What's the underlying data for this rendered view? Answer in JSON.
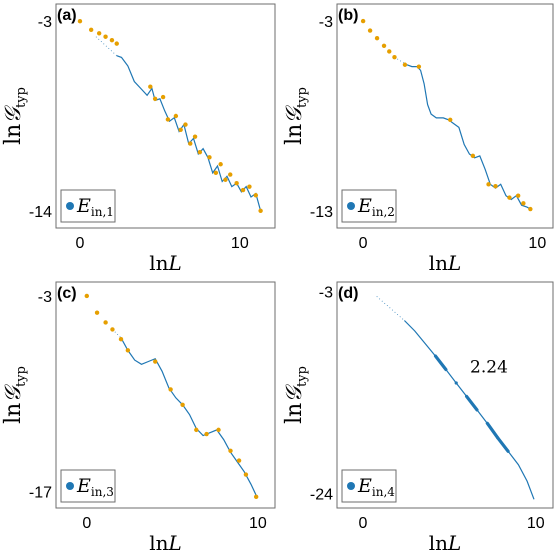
{
  "colors": {
    "curve": "#1f77b4",
    "points": "#e69f00",
    "legend_marker": "#1f77b4",
    "frame": "#6e6e6e"
  },
  "axis_titles": {
    "x": "lnL",
    "y": "ln𝒢typ"
  },
  "chart_data": [
    {
      "type": "line",
      "panel": "(a)",
      "legend": "E_in,1",
      "legend_main": "E",
      "legend_sub": "in,1",
      "xlabel": "lnL",
      "ylabel": "ln𝒢typ",
      "xlim": [
        -1.5,
        12.2
      ],
      "ylim": [
        -15.0,
        -2.0
      ],
      "xticks": [
        0,
        10
      ],
      "yticks": [
        -3,
        -14
      ],
      "ytick_labels": [
        "-3",
        "-14"
      ],
      "dotted_segments": [
        [
          [
            1.0,
            -3.9
          ],
          [
            2.3,
            -5.0
          ]
        ]
      ],
      "line": [
        [
          2.3,
          -5.0
        ],
        [
          2.6,
          -5.1
        ],
        [
          3.0,
          -5.6
        ],
        [
          3.4,
          -6.5
        ],
        [
          3.8,
          -6.9
        ],
        [
          4.2,
          -7.3
        ],
        [
          4.5,
          -6.9
        ],
        [
          4.7,
          -7.6
        ],
        [
          5.0,
          -7.5
        ],
        [
          5.3,
          -8.2
        ],
        [
          5.6,
          -8.8
        ],
        [
          5.9,
          -8.6
        ],
        [
          6.2,
          -9.4
        ],
        [
          6.5,
          -9.0
        ],
        [
          6.8,
          -10.1
        ],
        [
          7.1,
          -9.8
        ],
        [
          7.4,
          -10.7
        ],
        [
          7.7,
          -10.4
        ],
        [
          8.0,
          -10.9
        ],
        [
          8.3,
          -11.8
        ],
        [
          8.6,
          -11.4
        ],
        [
          8.9,
          -12.3
        ],
        [
          9.2,
          -12.0
        ],
        [
          9.5,
          -12.6
        ],
        [
          9.8,
          -12.4
        ],
        [
          10.1,
          -12.9
        ],
        [
          10.4,
          -12.6
        ],
        [
          10.7,
          -13.2
        ],
        [
          11.0,
          -13.0
        ],
        [
          11.3,
          -14.0
        ]
      ],
      "points": [
        [
          0.0,
          -3.0
        ],
        [
          0.7,
          -3.5
        ],
        [
          1.2,
          -3.7
        ],
        [
          1.6,
          -3.9
        ],
        [
          2.0,
          -4.1
        ],
        [
          2.3,
          -4.3
        ],
        [
          4.4,
          -6.8
        ],
        [
          4.7,
          -7.5
        ],
        [
          5.2,
          -7.4
        ],
        [
          5.5,
          -8.7
        ],
        [
          6.0,
          -8.5
        ],
        [
          6.3,
          -9.3
        ],
        [
          6.6,
          -9.0
        ],
        [
          6.9,
          -10.1
        ],
        [
          7.2,
          -9.7
        ],
        [
          7.5,
          -10.6
        ],
        [
          8.1,
          -10.9
        ],
        [
          8.5,
          -11.8
        ],
        [
          8.8,
          -11.3
        ],
        [
          9.1,
          -12.2
        ],
        [
          9.4,
          -11.9
        ],
        [
          9.8,
          -12.4
        ],
        [
          10.2,
          -12.8
        ],
        [
          10.6,
          -12.6
        ],
        [
          11.0,
          -13.1
        ],
        [
          11.3,
          -14.0
        ]
      ]
    },
    {
      "type": "line",
      "panel": "(b)",
      "legend": "E_in,2",
      "legend_main": "E",
      "legend_sub": "in,2",
      "xlabel": "lnL",
      "ylabel": "ln𝒢typ",
      "xlim": [
        -1.5,
        10.9
      ],
      "ylim": [
        -13.9,
        -2.1
      ],
      "xticks": [
        0,
        10
      ],
      "yticks": [
        -3,
        -13
      ],
      "ytick_labels": [
        "-3",
        "-13"
      ],
      "dotted_segments": [
        [
          [
            1.8,
            -4.9
          ],
          [
            2.5,
            -5.3
          ]
        ]
      ],
      "line": [
        [
          2.5,
          -5.3
        ],
        [
          2.8,
          -5.4
        ],
        [
          3.1,
          -5.4
        ],
        [
          3.3,
          -5.6
        ],
        [
          3.5,
          -6.3
        ],
        [
          3.7,
          -7.4
        ],
        [
          3.9,
          -7.9
        ],
        [
          4.2,
          -8.1
        ],
        [
          4.6,
          -8.1
        ],
        [
          4.9,
          -8.2
        ],
        [
          5.2,
          -8.4
        ],
        [
          5.5,
          -8.6
        ],
        [
          5.8,
          -9.5
        ],
        [
          6.1,
          -10.0
        ],
        [
          6.4,
          -10.2
        ],
        [
          6.7,
          -10.1
        ],
        [
          7.0,
          -10.8
        ],
        [
          7.3,
          -11.6
        ],
        [
          7.6,
          -11.8
        ],
        [
          7.9,
          -11.6
        ],
        [
          8.2,
          -12.2
        ],
        [
          8.5,
          -12.4
        ],
        [
          8.8,
          -12.2
        ],
        [
          9.1,
          -12.7
        ],
        [
          9.4,
          -12.8
        ],
        [
          9.6,
          -12.9
        ]
      ],
      "points": [
        [
          0.0,
          -3.0
        ],
        [
          0.4,
          -3.5
        ],
        [
          0.8,
          -3.9
        ],
        [
          1.2,
          -4.3
        ],
        [
          1.5,
          -4.6
        ],
        [
          1.8,
          -4.9
        ],
        [
          2.4,
          -5.3
        ],
        [
          3.2,
          -5.4
        ],
        [
          5.0,
          -8.2
        ],
        [
          6.3,
          -10.1
        ],
        [
          7.2,
          -11.6
        ],
        [
          7.6,
          -11.7
        ],
        [
          8.4,
          -12.3
        ],
        [
          8.9,
          -12.2
        ],
        [
          9.2,
          -12.6
        ],
        [
          9.6,
          -12.9
        ]
      ]
    },
    {
      "type": "line",
      "panel": "(c)",
      "legend": "E_in,3",
      "legend_main": "E",
      "legend_sub": "in,3",
      "xlabel": "lnL",
      "ylabel": "ln𝒢typ",
      "xlim": [
        -1.8,
        11.0
      ],
      "ylim": [
        -18.2,
        -2.0
      ],
      "xticks": [
        0,
        10
      ],
      "yticks": [
        -3,
        -17
      ],
      "ytick_labels": [
        "-3",
        "-17"
      ],
      "dotted_segments": [
        [
          [
            1.5,
            -5.4
          ],
          [
            2.0,
            -6.0
          ]
        ]
      ],
      "line": [
        [
          2.0,
          -6.0
        ],
        [
          2.4,
          -6.9
        ],
        [
          2.8,
          -7.6
        ],
        [
          3.2,
          -7.9
        ],
        [
          3.6,
          -7.7
        ],
        [
          4.0,
          -7.5
        ],
        [
          4.4,
          -8.4
        ],
        [
          4.8,
          -9.6
        ],
        [
          5.2,
          -10.3
        ],
        [
          5.6,
          -10.8
        ],
        [
          6.0,
          -11.5
        ],
        [
          6.4,
          -12.5
        ],
        [
          6.8,
          -13.0
        ],
        [
          7.2,
          -12.8
        ],
        [
          7.6,
          -12.6
        ],
        [
          8.0,
          -13.3
        ],
        [
          8.4,
          -14.2
        ],
        [
          8.8,
          -14.9
        ],
        [
          9.2,
          -15.6
        ],
        [
          9.6,
          -16.5
        ],
        [
          9.9,
          -17.3
        ]
      ],
      "points": [
        [
          0.0,
          -3.0
        ],
        [
          0.6,
          -4.2
        ],
        [
          1.1,
          -4.9
        ],
        [
          1.5,
          -5.4
        ],
        [
          2.0,
          -6.1
        ],
        [
          2.4,
          -6.9
        ],
        [
          4.0,
          -7.7
        ],
        [
          4.9,
          -9.7
        ],
        [
          5.6,
          -10.8
        ],
        [
          6.4,
          -12.6
        ],
        [
          7.0,
          -12.9
        ],
        [
          7.7,
          -12.6
        ],
        [
          8.4,
          -14.1
        ],
        [
          8.9,
          -14.8
        ],
        [
          9.3,
          -15.8
        ],
        [
          9.9,
          -17.4
        ]
      ]
    },
    {
      "type": "line",
      "panel": "(d)",
      "legend": "E_in,4",
      "legend_main": "E",
      "legend_sub": "in,4",
      "xlabel": "lnL",
      "ylabel": "ln𝒢typ",
      "annotation": "2.24",
      "xlim": [
        -1.5,
        11.0
      ],
      "ylim": [
        -25.5,
        -2.0
      ],
      "xticks": [
        0,
        10
      ],
      "yticks": [
        -3,
        -24
      ],
      "ytick_labels": [
        "-3",
        "-24"
      ],
      "dotted_segments": [
        [
          [
            0.8,
            -3.5
          ],
          [
            2.4,
            -6.0
          ]
        ]
      ],
      "line": [
        [
          2.4,
          -6.0
        ],
        [
          3.0,
          -7.1
        ],
        [
          3.6,
          -8.4
        ],
        [
          4.2,
          -9.7
        ],
        [
          4.8,
          -11.1
        ],
        [
          5.4,
          -12.5
        ],
        [
          6.0,
          -13.9
        ],
        [
          6.6,
          -15.3
        ],
        [
          7.2,
          -16.7
        ],
        [
          7.8,
          -18.2
        ],
        [
          8.4,
          -19.6
        ],
        [
          9.0,
          -21.0
        ],
        [
          9.5,
          -22.7
        ],
        [
          9.9,
          -24.6
        ]
      ],
      "points": []
    }
  ]
}
